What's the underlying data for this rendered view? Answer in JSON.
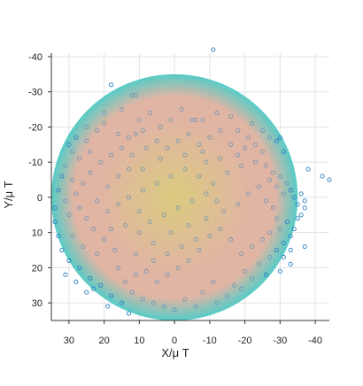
{
  "chart_data": {
    "type": "scatter",
    "xlabel": "X/μ T",
    "ylabel": "Y/μ T",
    "xlim": [
      35,
      -44
    ],
    "ylim": [
      -41,
      35
    ],
    "x_ticks": [
      30,
      20,
      10,
      0,
      -10,
      -20,
      -30,
      -40
    ],
    "y_ticks": [
      -40,
      -30,
      -20,
      -10,
      0,
      10,
      20,
      30
    ],
    "grid": true,
    "colors": {
      "point": "#2b7fc0",
      "sphere_center": "#d9c878",
      "sphere_mid": "#dfb19f",
      "sphere_edge": "#4ec9c4",
      "grid": "#e3e3e3",
      "axis": "#333333"
    },
    "sphere": {
      "center": [
        0,
        0
      ],
      "radius": 35
    },
    "series": [
      {
        "values": [
          {
            "x": -11,
            "y": -42
          },
          {
            "x": 18,
            "y": -32
          },
          {
            "x": 12,
            "y": -29
          },
          {
            "x": 11,
            "y": -29
          },
          {
            "x": 1,
            "y": -22
          },
          {
            "x": -5,
            "y": -22
          },
          {
            "x": -6,
            "y": -22
          },
          {
            "x": -8,
            "y": -22
          },
          {
            "x": 9,
            "y": -19
          },
          {
            "x": 11,
            "y": -18
          },
          {
            "x": 13,
            "y": -17
          },
          {
            "x": 16,
            "y": -18
          },
          {
            "x": -22,
            "y": -21
          },
          {
            "x": -25,
            "y": -19
          },
          {
            "x": -27,
            "y": -17
          },
          {
            "x": -29,
            "y": -16
          },
          {
            "x": -30,
            "y": -17
          },
          {
            "x": -31,
            "y": -13
          },
          {
            "x": 29,
            "y": -13
          },
          {
            "x": 30,
            "y": -15
          },
          {
            "x": 25,
            "y": -16
          },
          {
            "x": 22,
            "y": -19
          },
          {
            "x": 20,
            "y": -21
          },
          {
            "x": 9,
            "y": -8
          },
          {
            "x": 4,
            "y": -11
          },
          {
            "x": -8,
            "y": -13
          },
          {
            "x": -13,
            "y": -11
          },
          {
            "x": -19,
            "y": -9
          },
          {
            "x": -23,
            "y": -10
          },
          {
            "x": -26,
            "y": -9
          },
          {
            "x": -28,
            "y": -7
          },
          {
            "x": -30,
            "y": -6
          },
          {
            "x": -32,
            "y": -4
          },
          {
            "x": -33,
            "y": -2
          },
          {
            "x": -34,
            "y": 0
          },
          {
            "x": -35,
            "y": 2
          },
          {
            "x": -36,
            "y": -1
          },
          {
            "x": -37,
            "y": 1
          },
          {
            "x": -37,
            "y": 3
          },
          {
            "x": -36,
            "y": 5
          },
          {
            "x": -42,
            "y": -6
          },
          {
            "x": -44,
            "y": -5
          },
          {
            "x": -38,
            "y": -8
          },
          {
            "x": -37,
            "y": 14
          },
          {
            "x": -33,
            "y": 11
          },
          {
            "x": -31,
            "y": 13
          },
          {
            "x": -29,
            "y": 15
          },
          {
            "x": -27,
            "y": 17
          },
          {
            "x": -24,
            "y": 19
          },
          {
            "x": -20,
            "y": 21
          },
          {
            "x": -22,
            "y": 23
          },
          {
            "x": -17,
            "y": 25
          },
          {
            "x": -19,
            "y": 26
          },
          {
            "x": -15,
            "y": 28
          },
          {
            "x": -11,
            "y": 24
          },
          {
            "x": -8,
            "y": 27
          },
          {
            "x": -6,
            "y": 31
          },
          {
            "x": -3,
            "y": 29
          },
          {
            "x": 0,
            "y": 32
          },
          {
            "x": 3,
            "y": 31
          },
          {
            "x": 6,
            "y": 30
          },
          {
            "x": 9,
            "y": 29
          },
          {
            "x": 12,
            "y": 27
          },
          {
            "x": 15,
            "y": 30
          },
          {
            "x": 18,
            "y": 28
          },
          {
            "x": 21,
            "y": 25
          },
          {
            "x": 24,
            "y": 23
          },
          {
            "x": 27,
            "y": 20
          },
          {
            "x": 30,
            "y": 18
          },
          {
            "x": 32,
            "y": 15
          },
          {
            "x": 33,
            "y": 11
          },
          {
            "x": 34,
            "y": 7
          },
          {
            "x": 34,
            "y": 3
          },
          {
            "x": 33,
            "y": -2
          },
          {
            "x": 32,
            "y": -6
          },
          {
            "x": 31,
            "y": -9
          },
          {
            "x": 28,
            "y": 24
          },
          {
            "x": 23,
            "y": 26
          },
          {
            "x": 16,
            "y": 20
          },
          {
            "x": 11,
            "y": 16
          },
          {
            "x": 6,
            "y": 13
          },
          {
            "x": 1,
            "y": 10
          },
          {
            "x": -4,
            "y": 8
          },
          {
            "x": -9,
            "y": 6
          },
          {
            "x": -14,
            "y": 4
          },
          {
            "x": -18,
            "y": 2
          },
          {
            "x": -21,
            "y": -1
          },
          {
            "x": -24,
            "y": -3
          },
          {
            "x": -26,
            "y": 1
          },
          {
            "x": -28,
            "y": 3
          },
          {
            "x": -29,
            "y": 6
          },
          {
            "x": -30,
            "y": 9
          },
          {
            "x": -27,
            "y": 10
          },
          {
            "x": -25,
            "y": 12
          },
          {
            "x": -22,
            "y": 14
          },
          {
            "x": -19,
            "y": 16
          },
          {
            "x": -16,
            "y": 12
          },
          {
            "x": -13,
            "y": 9
          },
          {
            "x": -10,
            "y": 11
          },
          {
            "x": -7,
            "y": 15
          },
          {
            "x": -4,
            "y": 18
          },
          {
            "x": -1,
            "y": 20
          },
          {
            "x": 2,
            "y": 22
          },
          {
            "x": 5,
            "y": 24
          },
          {
            "x": 8,
            "y": 21
          },
          {
            "x": 11,
            "y": 22
          },
          {
            "x": 14,
            "y": 24
          },
          {
            "x": 17,
            "y": 15
          },
          {
            "x": 20,
            "y": 12
          },
          {
            "x": 23,
            "y": 9
          },
          {
            "x": 25,
            "y": 6
          },
          {
            "x": 27,
            "y": 3
          },
          {
            "x": 28,
            "y": -1
          },
          {
            "x": 26,
            "y": -4
          },
          {
            "x": 24,
            "y": -7
          },
          {
            "x": 21,
            "y": -10
          },
          {
            "x": 18,
            "y": -12
          },
          {
            "x": 15,
            "y": -14
          },
          {
            "x": 12,
            "y": -12
          },
          {
            "x": 8,
            "y": -14
          },
          {
            "x": 5,
            "y": -16
          },
          {
            "x": 2,
            "y": -14
          },
          {
            "x": -1,
            "y": -16
          },
          {
            "x": -4,
            "y": -18
          },
          {
            "x": -7,
            "y": -15
          },
          {
            "x": -10,
            "y": -17
          },
          {
            "x": -13,
            "y": -19
          },
          {
            "x": -16,
            "y": -15
          },
          {
            "x": -18,
            "y": -12
          },
          {
            "x": -20,
            "y": -14
          },
          {
            "x": -15,
            "y": -7
          },
          {
            "x": -11,
            "y": -4
          },
          {
            "x": -7,
            "y": -6
          },
          {
            "x": -3,
            "y": -8
          },
          {
            "x": 1,
            "y": -6
          },
          {
            "x": 5,
            "y": -4
          },
          {
            "x": 9,
            "y": -2
          },
          {
            "x": 13,
            "y": 0
          },
          {
            "x": 16,
            "y": 2
          },
          {
            "x": 19,
            "y": 4
          },
          {
            "x": 22,
            "y": 1
          },
          {
            "x": 19,
            "y": -3
          },
          {
            "x": 16,
            "y": -6
          },
          {
            "x": 13,
            "y": -8
          },
          {
            "x": 10,
            "y": 4
          },
          {
            "x": 7,
            "y": 7
          },
          {
            "x": 3,
            "y": 5
          },
          {
            "x": -1,
            "y": 3
          },
          {
            "x": -5,
            "y": 1
          },
          {
            "x": -9,
            "y": -1
          },
          {
            "x": -12,
            "y": 1
          },
          {
            "x": -6,
            "y": 12
          },
          {
            "x": -2,
            "y": 14
          },
          {
            "x": 2,
            "y": 16
          },
          {
            "x": 6,
            "y": 18
          },
          {
            "x": 10,
            "y": 10
          },
          {
            "x": 14,
            "y": 8
          },
          {
            "x": 18,
            "y": 9
          },
          {
            "x": 22,
            "y": 16
          },
          {
            "x": 26,
            "y": 14
          },
          {
            "x": 29,
            "y": 11
          },
          {
            "x": 30,
            "y": 5
          },
          {
            "x": 31,
            "y": 1
          },
          {
            "x": 29,
            "y": -5
          },
          {
            "x": 27,
            "y": -11
          },
          {
            "x": 24,
            "y": -13
          },
          {
            "x": -31,
            "y": 17
          },
          {
            "x": -33,
            "y": 15
          },
          {
            "x": -34,
            "y": 9
          },
          {
            "x": -35,
            "y": 6
          },
          {
            "x": -32,
            "y": 7
          },
          {
            "x": -31,
            "y": -1
          },
          {
            "x": -29,
            "y": -3
          },
          {
            "x": -27,
            "y": -5
          },
          {
            "x": -25,
            "y": -13
          },
          {
            "x": -23,
            "y": -15
          },
          {
            "x": -21,
            "y": -17
          },
          {
            "x": -18,
            "y": -19
          },
          {
            "x": -9,
            "y": -10
          },
          {
            "x": -3,
            "y": -12
          },
          {
            "x": 4,
            "y": -20
          },
          {
            "x": 7,
            "y": -24
          },
          {
            "x": 10,
            "y": -22
          },
          {
            "x": -2,
            "y": -25
          },
          {
            "x": -12,
            "y": -24
          },
          {
            "x": -16,
            "y": -23
          },
          {
            "x": 15,
            "y": -25
          },
          {
            "x": 20,
            "y": -24
          },
          {
            "x": 25,
            "y": -20
          },
          {
            "x": 28,
            "y": -17
          },
          {
            "x": -33,
            "y": 19
          },
          {
            "x": -30,
            "y": 21
          },
          {
            "x": 31,
            "y": 22
          },
          {
            "x": 25,
            "y": 27
          },
          {
            "x": 19,
            "y": 31
          },
          {
            "x": 13,
            "y": 33
          },
          {
            "x": -12,
            "y": 30
          },
          {
            "x": -26,
            "y": 22
          }
        ]
      }
    ]
  }
}
